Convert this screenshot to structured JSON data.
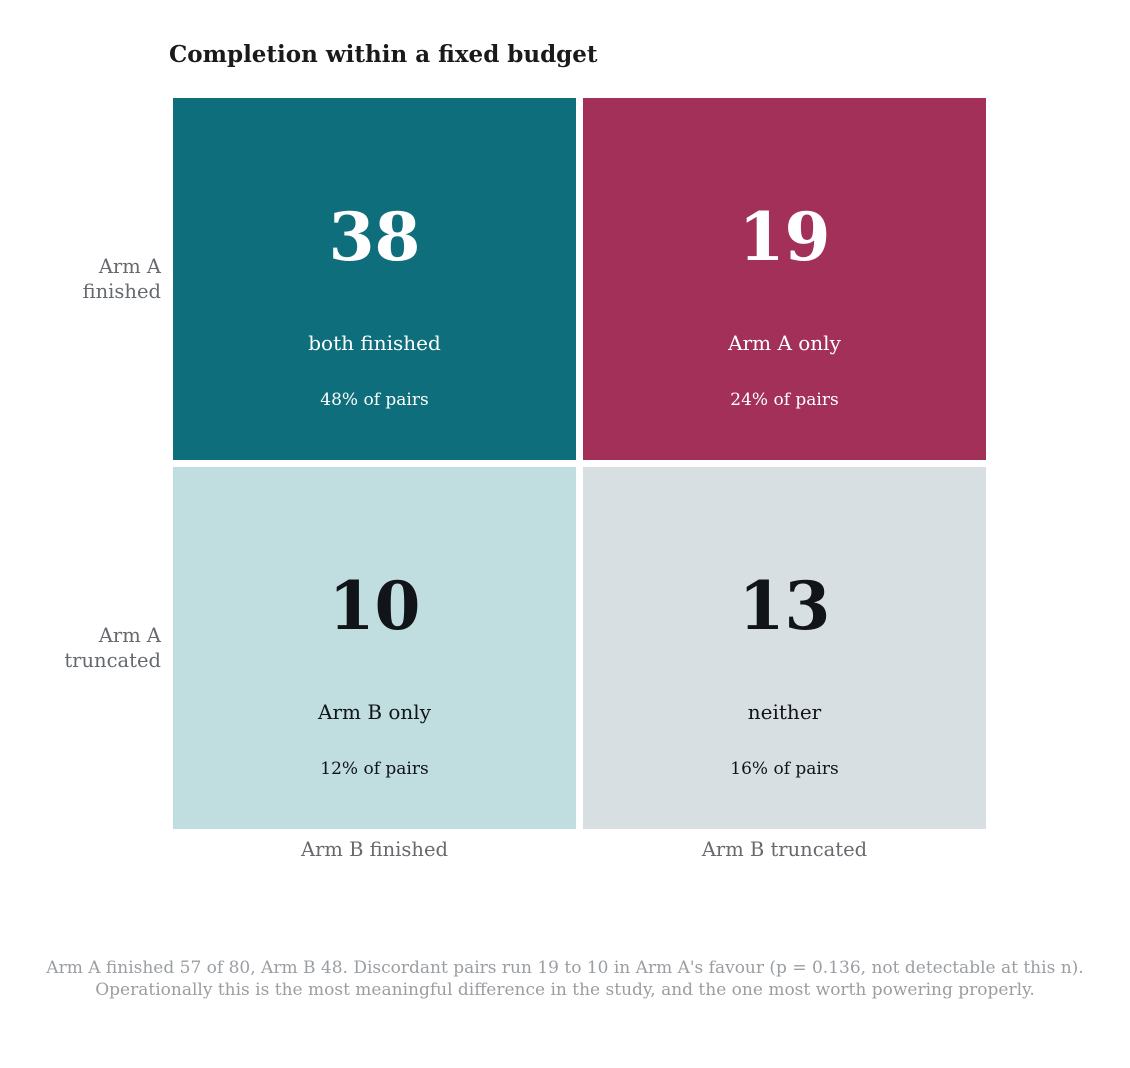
{
  "chart_data": {
    "type": "heatmap",
    "title": "Completion within a fixed budget",
    "rows": [
      "Arm A finished",
      "Arm A truncated"
    ],
    "row_label_lines": [
      [
        "Arm A",
        "finished"
      ],
      [
        "Arm A",
        "truncated"
      ]
    ],
    "columns": [
      "Arm B finished",
      "Arm B truncated"
    ],
    "cells": [
      [
        {
          "count": "38",
          "label": "both finished",
          "pct": "48% of pairs",
          "fill": "#0f6e7b",
          "text_color": "#ffffff"
        },
        {
          "count": "19",
          "label": "Arm A only",
          "pct": "24% of pairs",
          "fill": "#a33059",
          "text_color": "#ffffff"
        }
      ],
      [
        {
          "count": "10",
          "label": "Arm B only",
          "pct": "12% of pairs",
          "fill": "#c0dde0",
          "text_color": "#111418"
        },
        {
          "count": "13",
          "label": "neither",
          "pct": "16% of pairs",
          "fill": "#d8dfe2",
          "text_color": "#111418"
        }
      ]
    ],
    "values": [
      [
        38,
        19
      ],
      [
        10,
        13
      ]
    ],
    "footnote_lines": [
      "Arm A finished 57 of 80, Arm B 48. Discordant pairs run 19 to 10 in Arm A's favour (p = 0.136, not detectable at this n).",
      "Operationally this is the most meaningful difference in the study, and the one most worth powering properly."
    ]
  }
}
